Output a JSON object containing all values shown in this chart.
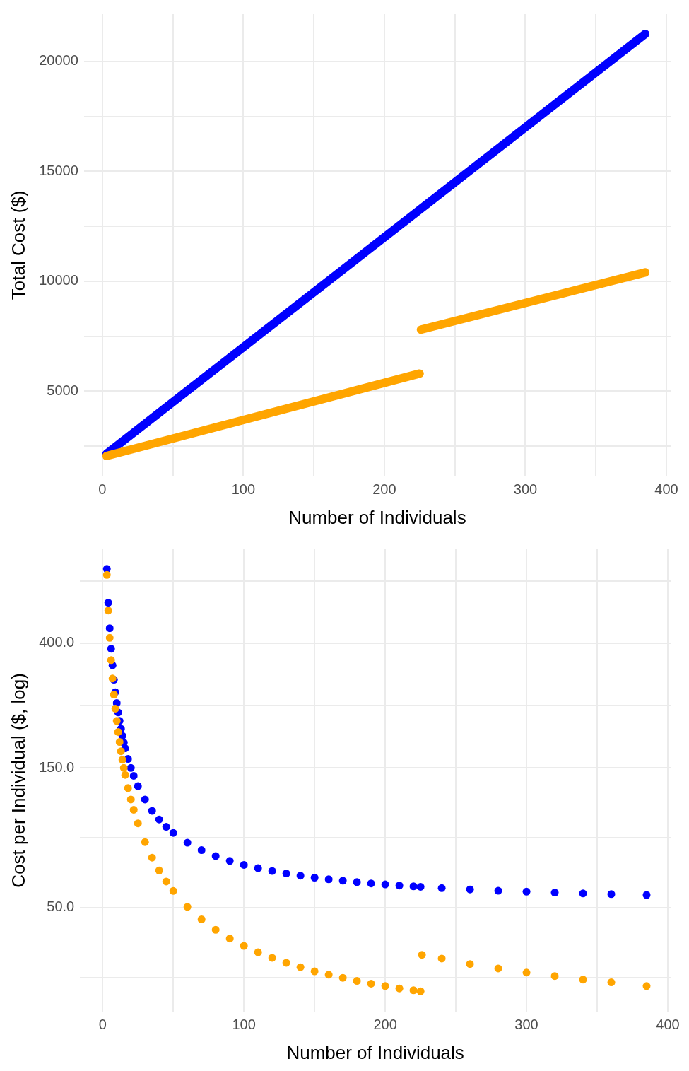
{
  "chart_data": [
    {
      "type": "line",
      "xlabel": "Number of Individuals",
      "ylabel": "Total Cost ($)",
      "xlim": [
        -13,
        403
      ],
      "ylim": [
        1125,
        22150
      ],
      "xticks": [
        0,
        {
          "value": 50,
          "label": null
        },
        100,
        {
          "value": 150,
          "label": null
        },
        200,
        {
          "value": 250,
          "label": null
        },
        300,
        {
          "value": 350,
          "label": null
        },
        400
      ],
      "yticks": [
        {
          "value": 2500,
          "label": null
        },
        5000,
        {
          "value": 7500,
          "label": null
        },
        10000,
        {
          "value": 12500,
          "label": null
        },
        15000,
        {
          "value": 17500,
          "label": null
        },
        20000
      ],
      "grid": true,
      "legend": false,
      "marker": "none",
      "line_style": "solid",
      "series": [
        {
          "color": "#0000ff",
          "x": [
            3,
            385
          ],
          "values": [
            2150,
            21250
          ]
        },
        {
          "color": "#ffa500",
          "x": [
            3,
            225,
            225.5,
            226,
            385
          ],
          "values": [
            2050,
            5800,
            null,
            7800,
            10400
          ]
        }
      ]
    },
    {
      "type": "scatter",
      "xlabel": "Number of Individuals",
      "ylabel": "Cost per Individual ($, log)",
      "log": "y",
      "xlim": [
        -16,
        402
      ],
      "ylim": [
        22.1,
        837
      ],
      "xticks": [
        0,
        {
          "value": 50,
          "label": null
        },
        100,
        {
          "value": 150,
          "label": null
        },
        200,
        {
          "value": 250,
          "label": null
        },
        300,
        {
          "value": 350,
          "label": null
        },
        400
      ],
      "yticks": [
        {
          "value": 28.9,
          "label": null
        },
        {
          "value": 50,
          "label": "50.0"
        },
        {
          "value": 86.6,
          "label": null
        },
        {
          "value": 150,
          "label": "150.0"
        },
        {
          "value": 245,
          "label": null
        },
        {
          "value": 400,
          "label": "400.0"
        },
        {
          "value": 653,
          "label": null
        }
      ],
      "grid": true,
      "legend": false,
      "marker": "circle",
      "series": [
        {
          "color": "#0000ff",
          "x": [
            3,
            4,
            5,
            6,
            7,
            8,
            9,
            10,
            11,
            12,
            13,
            14,
            15,
            16,
            18,
            20,
            22,
            25,
            30,
            35,
            40,
            45,
            50,
            60,
            70,
            80,
            90,
            100,
            110,
            120,
            130,
            140,
            150,
            160,
            170,
            180,
            190,
            200,
            210,
            220,
            225,
            240,
            260,
            280,
            300,
            320,
            340,
            360,
            385
          ],
          "values": [
            717,
            550,
            450,
            383,
            336,
            300,
            272,
            250,
            232,
            217,
            204,
            193,
            183,
            175,
            161,
            150,
            141,
            130,
            117,
            107,
            100,
            94.4,
            90,
            83.3,
            78.6,
            75,
            72.2,
            70,
            68.2,
            66.7,
            65.4,
            64.3,
            63.3,
            62.5,
            61.8,
            61.1,
            60.5,
            60,
            59.5,
            59.1,
            58.9,
            58.3,
            57.7,
            57.1,
            56.7,
            56.3,
            55.9,
            55.6,
            55.2
          ]
        },
        {
          "color": "#ffa500",
          "x": [
            3,
            4,
            5,
            6,
            7,
            8,
            9,
            10,
            11,
            12,
            13,
            14,
            15,
            16,
            18,
            20,
            22,
            25,
            30,
            35,
            40,
            45,
            50,
            60,
            70,
            80,
            90,
            100,
            110,
            120,
            130,
            140,
            150,
            160,
            170,
            180,
            190,
            200,
            210,
            220,
            225,
            226,
            240,
            260,
            280,
            300,
            320,
            340,
            360,
            385
          ],
          "values": [
            684,
            517,
            417,
            350,
            303,
            267,
            239,
            217,
            199,
            184,
            171,
            160,
            150,
            142,
            128,
            117,
            108,
            97,
            83.7,
            74.1,
            67,
            61.4,
            57,
            50.3,
            45.6,
            42,
            39.2,
            37,
            35.2,
            33.7,
            32.4,
            31.3,
            30.3,
            29.5,
            28.8,
            28.1,
            27.5,
            27,
            26.5,
            26.1,
            25.9,
            34.5,
            33.5,
            32.1,
            31,
            30,
            29.2,
            28.4,
            27.8,
            27
          ]
        }
      ]
    }
  ]
}
